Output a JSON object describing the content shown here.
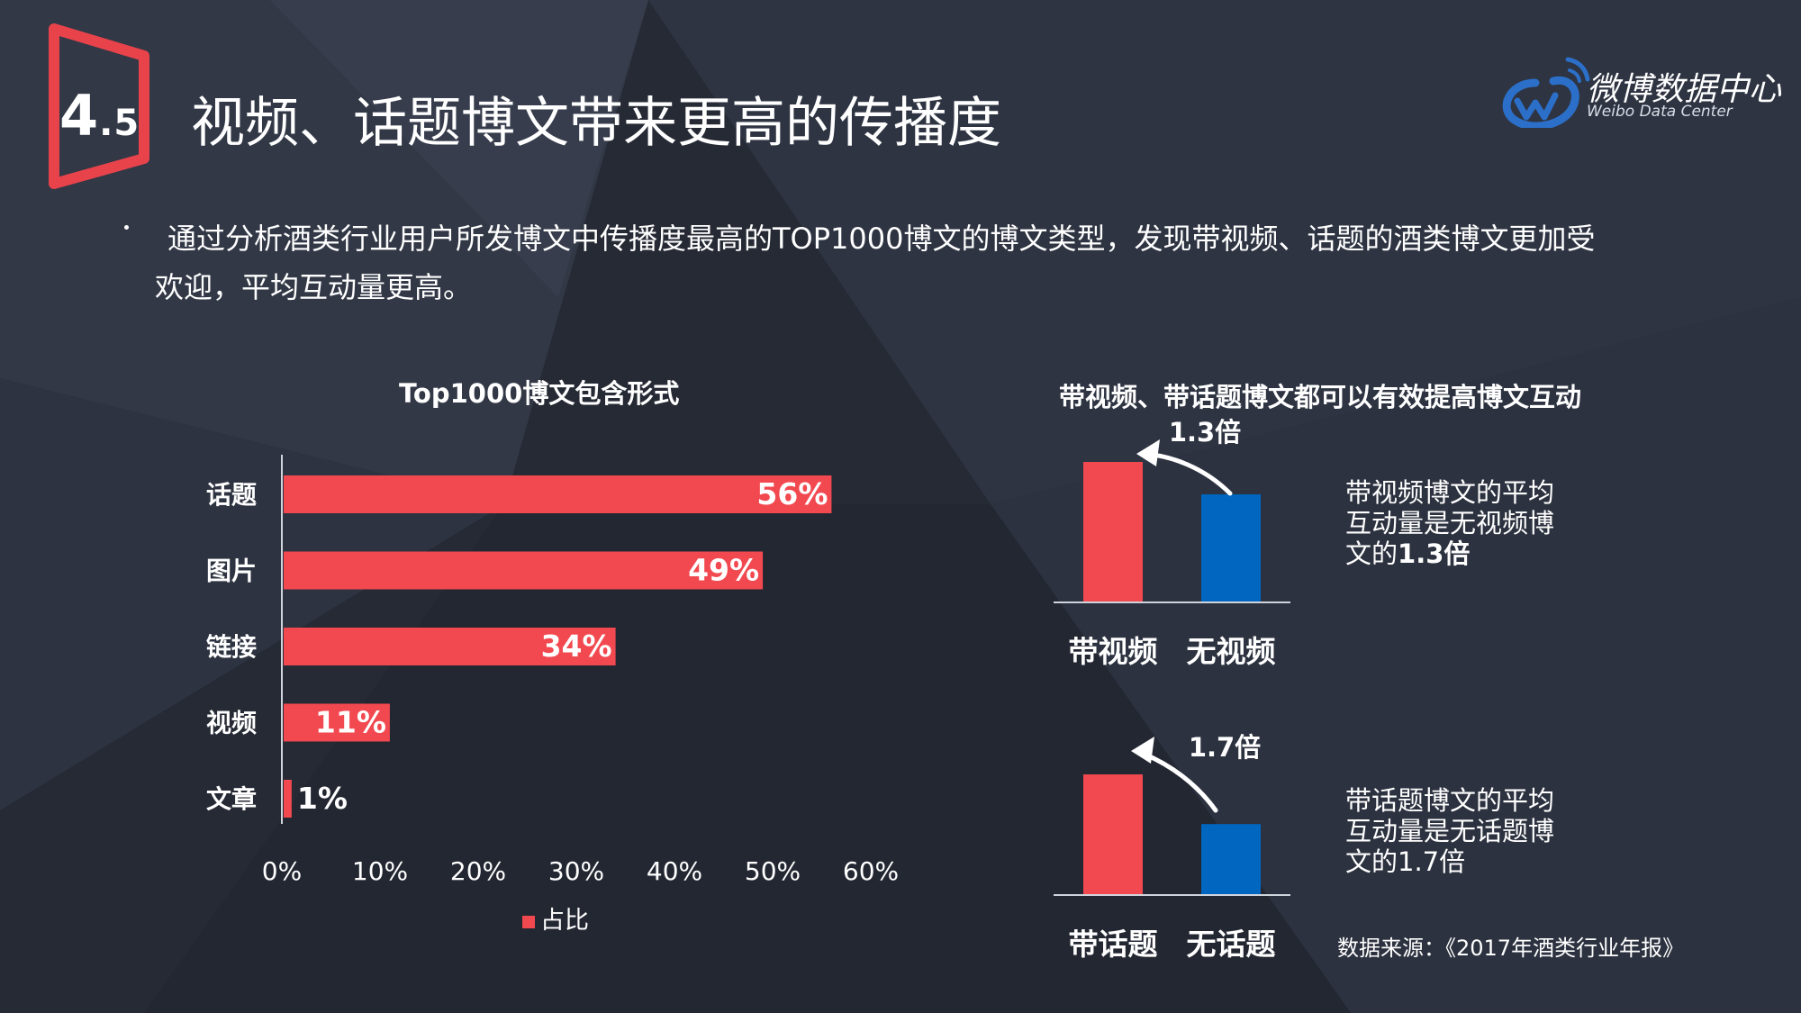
{
  "header": {
    "section_number": "4",
    "section_sub": ".5",
    "title": "视频、话题博文带来更高的传播度"
  },
  "logo": {
    "name": "微博数据中心",
    "subtitle": "Weibo Data Center"
  },
  "description": {
    "line1": "通过分析酒类行业用户所发博文中传播度最高的TOP1000博文的博文类型，发现带视频、话题的酒类博文更加受",
    "line2": "欢迎，平均互动量更高。"
  },
  "colors": {
    "red": "#f2484f",
    "blue": "#0066c0",
    "background": "#2a2f3b",
    "badge": "#e8434b"
  },
  "chart_data": [
    {
      "type": "bar",
      "orientation": "horizontal",
      "title": "Top1000博文包含形式",
      "categories": [
        "话题",
        "图片",
        "链接",
        "视频",
        "文章"
      ],
      "values": [
        56,
        49,
        34,
        11,
        1
      ],
      "value_labels": [
        "56%",
        "49%",
        "34%",
        "11%",
        "1%"
      ],
      "series_name": "占比",
      "xlim": [
        0,
        60
      ],
      "xticks": [
        "0%",
        "10%",
        "20%",
        "30%",
        "40%",
        "50%",
        "60%"
      ],
      "legend": "bottom",
      "grid": false
    },
    {
      "type": "bar",
      "title": "带视频、带话题博文都可以有效提高博文互动",
      "categories": [
        "带视频",
        "无视频"
      ],
      "values": [
        1.3,
        1.0
      ],
      "ratio_label": "1.3倍",
      "note_prefix": "带视频博文的平均互动量是无视频博文的",
      "note_value": "1.3倍"
    },
    {
      "type": "bar",
      "categories": [
        "带话题",
        "无话题"
      ],
      "values": [
        1.7,
        1.0
      ],
      "ratio_label": "1.7倍",
      "note": "带话题博文的平均互动量是无话题博文的1.7倍"
    }
  ],
  "source": "数据来源：《2017年酒类行业年报》"
}
